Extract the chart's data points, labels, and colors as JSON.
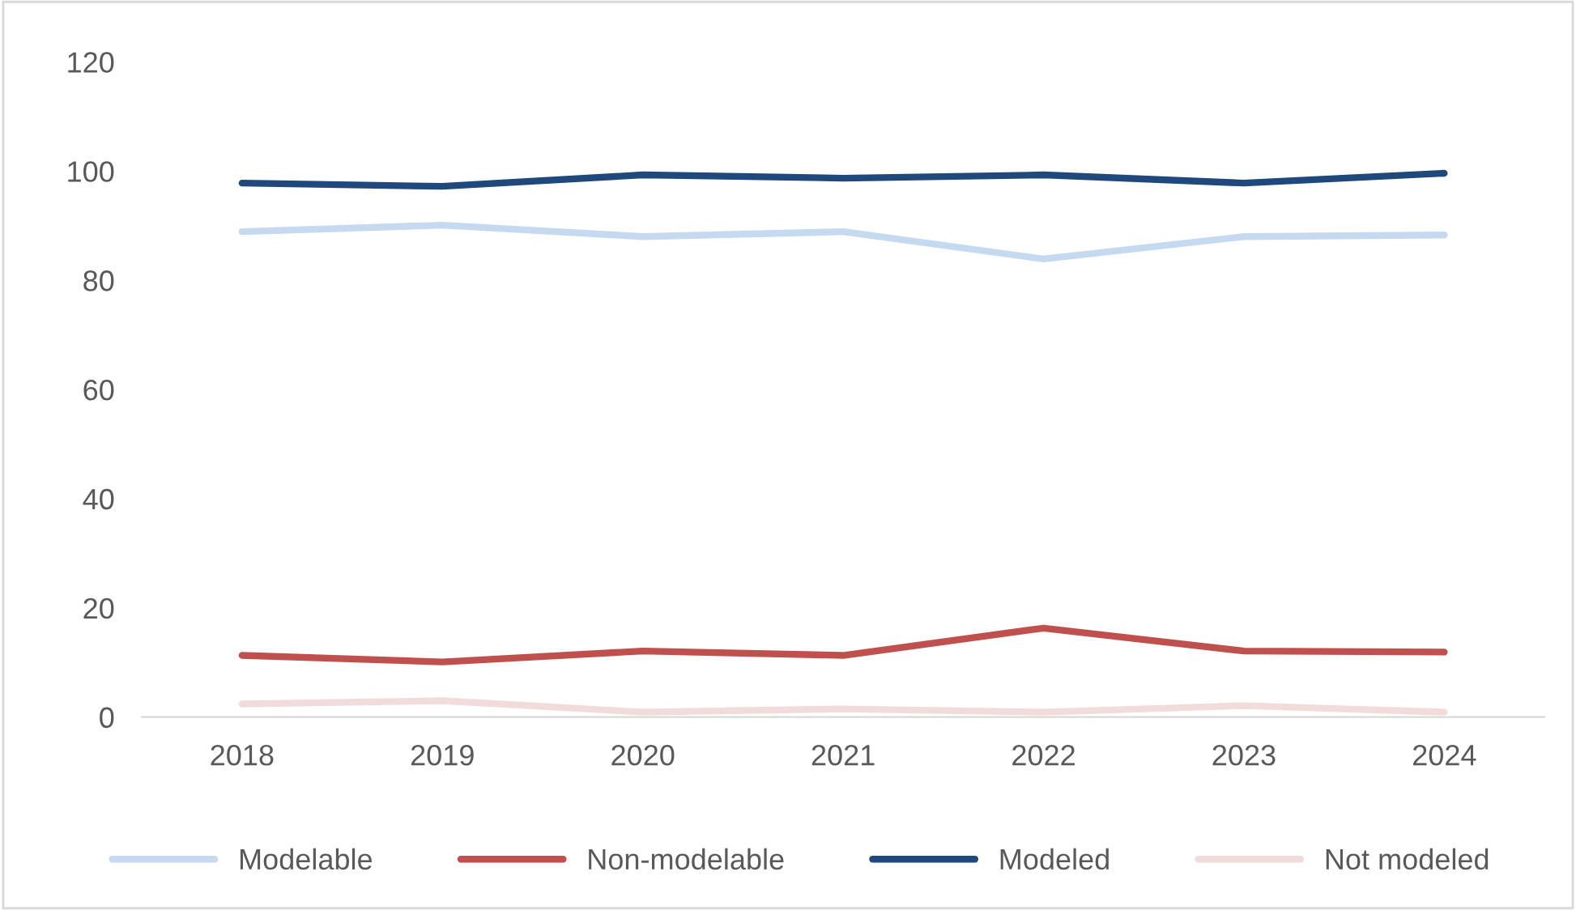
{
  "chart_data": {
    "type": "line",
    "categories": [
      "2018",
      "2019",
      "2020",
      "2021",
      "2022",
      "2023",
      "2024"
    ],
    "series": [
      {
        "name": "Modelable",
        "color": "#c5d9f1",
        "values": [
          88.9,
          90.1,
          88.0,
          88.9,
          83.9,
          88.0,
          88.3
        ]
      },
      {
        "name": "Non-modelable",
        "color": "#c0504d",
        "values": [
          11.3,
          10.1,
          12.1,
          11.3,
          16.3,
          12.1,
          11.9
        ]
      },
      {
        "name": "Modeled",
        "color": "#1f497d",
        "values": [
          97.8,
          97.2,
          99.3,
          98.7,
          99.3,
          97.8,
          99.6
        ]
      },
      {
        "name": "Not modeled",
        "color": "#f2dcdb",
        "values": [
          2.4,
          3.0,
          0.9,
          1.5,
          0.9,
          2.1,
          0.9
        ]
      }
    ],
    "ylim": [
      0,
      120
    ],
    "yticks": [
      0,
      20,
      40,
      60,
      80,
      100,
      120
    ],
    "grid": false,
    "legend": "bottom",
    "marker": "none",
    "line_style": "solid"
  }
}
